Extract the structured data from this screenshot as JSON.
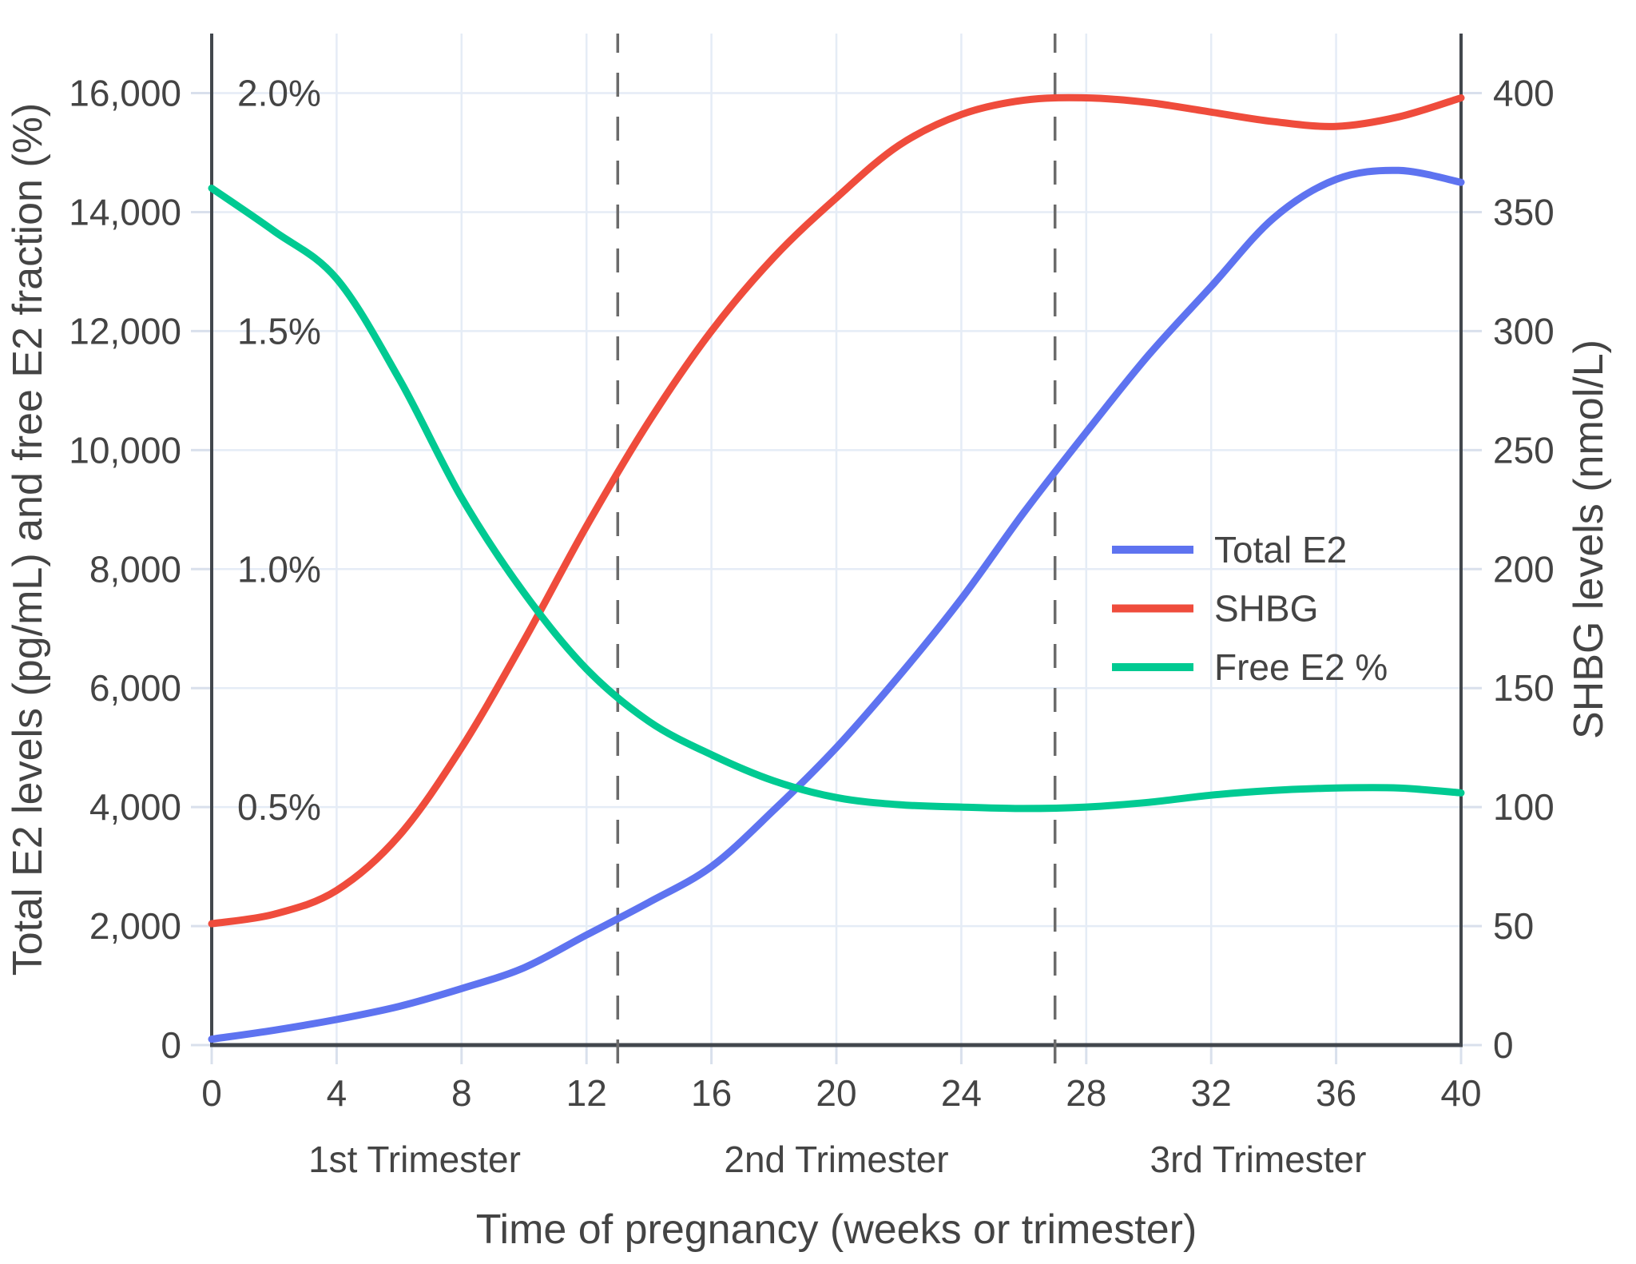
{
  "chart_data": {
    "type": "line",
    "title": "",
    "x_axis": {
      "title": "Time of pregnancy (weeks or trimester)",
      "range": [
        0,
        40
      ],
      "ticks": [
        0,
        4,
        8,
        12,
        16,
        20,
        24,
        28,
        32,
        36,
        40
      ],
      "grid": true
    },
    "left_axis": {
      "title": "Total E2 levels (pg/mL) and free E2 fraction (%)",
      "range": [
        0,
        17000
      ],
      "ticks": [
        0,
        2000,
        4000,
        6000,
        8000,
        10000,
        12000,
        14000,
        16000
      ],
      "tick_labels": [
        "0",
        "2,000",
        "4,000",
        "6,000",
        "8,000",
        "10,000",
        "12,000",
        "14,000",
        "16,000"
      ],
      "pct_labels": [
        {
          "text": "2.0%",
          "value": 16000
        },
        {
          "text": "1.5%",
          "value": 12000
        },
        {
          "text": "1.0%",
          "value": 8000
        },
        {
          "text": "0.5%",
          "value": 4000
        }
      ],
      "grid": true
    },
    "right_axis": {
      "title": "SHBG levels (nmol/L)",
      "range": [
        0,
        425
      ],
      "ticks": [
        0,
        50,
        100,
        150,
        200,
        250,
        300,
        350,
        400
      ],
      "tick_labels": [
        "0",
        "50",
        "100",
        "150",
        "200",
        "250",
        "300",
        "350",
        "400"
      ]
    },
    "x_weeks": [
      0,
      2,
      4,
      6,
      8,
      10,
      12,
      14,
      16,
      18,
      20,
      22,
      24,
      26,
      28,
      30,
      32,
      34,
      36,
      38,
      40
    ],
    "series": [
      {
        "name": "Total E2",
        "axis": "left",
        "unit": "pg/mL",
        "color": "#5E73F0",
        "values": [
          100,
          250,
          430,
          650,
          950,
          1300,
          1850,
          2400,
          3000,
          3950,
          5000,
          6200,
          7500,
          8950,
          10300,
          11600,
          12750,
          13900,
          14550,
          14700,
          14500
        ]
      },
      {
        "name": "SHBG",
        "axis": "right",
        "unit": "nmol/L",
        "color": "#EF4C3C",
        "values": [
          51,
          55,
          65,
          88,
          125,
          170,
          218,
          262,
          300,
          331,
          356,
          378,
          391,
          397,
          398,
          396,
          392,
          388,
          386,
          390,
          398
        ]
      },
      {
        "name": "Free E2 %",
        "axis": "left_pct",
        "unit": "%",
        "pct_to_left_units": 8000,
        "color": "#00CA92",
        "values": [
          1.8,
          1.71,
          1.61,
          1.4,
          1.15,
          0.95,
          0.79,
          0.68,
          0.61,
          0.555,
          0.52,
          0.505,
          0.5,
          0.497,
          0.5,
          0.51,
          0.525,
          0.535,
          0.54,
          0.54,
          0.53
        ]
      }
    ],
    "trimester_boundary_weeks": [
      13,
      27
    ],
    "trimesters": [
      {
        "label": "1st Trimester",
        "center_week": 6.5
      },
      {
        "label": "2nd Trimester",
        "center_week": 20
      },
      {
        "label": "3rd Trimester",
        "center_week": 33.5
      }
    ],
    "legend_position": "middle-right",
    "colors": {
      "grid": "#E5ECF6",
      "axis_line": "#42474D",
      "dashed_line": "#6B6B6B",
      "text": "#444444",
      "background": "#FFFFFF"
    }
  }
}
